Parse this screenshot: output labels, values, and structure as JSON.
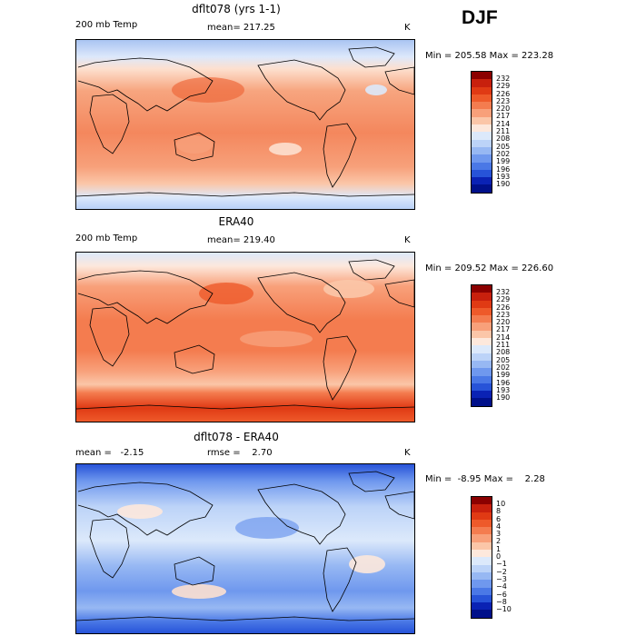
{
  "season": "DJF",
  "panels": [
    {
      "title": "dflt078 (yrs 1-1)",
      "left_label": "200 mb Temp",
      "center_label": "mean= 217.25",
      "units": "K",
      "minmax": "Min = 205.58 Max = 223.28",
      "colorbar": {
        "labels": [
          "232",
          "229",
          "226",
          "223",
          "220",
          "217",
          "214",
          "211",
          "208",
          "205",
          "202",
          "199",
          "196",
          "193",
          "190"
        ],
        "colors": [
          "#8b0000",
          "#c8200d",
          "#e03a14",
          "#ee5a2a",
          "#f47c4f",
          "#f8a07a",
          "#fbc6a8",
          "#fde8dc",
          "#dce9fb",
          "#bcd3f8",
          "#97b8f3",
          "#6f98ee",
          "#4a78e6",
          "#2753d8",
          "#0a22b4",
          "#00108a"
        ]
      }
    },
    {
      "title": "ERA40",
      "left_label": "200 mb Temp",
      "center_label": "mean= 219.40",
      "units": "K",
      "minmax": "Min = 209.52 Max = 226.60",
      "colorbar": {
        "labels": [
          "232",
          "229",
          "226",
          "223",
          "220",
          "217",
          "214",
          "211",
          "208",
          "205",
          "202",
          "199",
          "196",
          "193",
          "190"
        ],
        "colors": [
          "#8b0000",
          "#c8200d",
          "#e03a14",
          "#ee5a2a",
          "#f47c4f",
          "#f8a07a",
          "#fbc6a8",
          "#fde8dc",
          "#dce9fb",
          "#bcd3f8",
          "#97b8f3",
          "#6f98ee",
          "#4a78e6",
          "#2753d8",
          "#0a22b4",
          "#00108a"
        ]
      }
    },
    {
      "title": "dflt078 - ERA40",
      "left_label": "mean =   -2.15",
      "center_label": "rmse =    2.70",
      "units": "K",
      "minmax": "Min =  -8.95 Max =    2.28",
      "colorbar": {
        "labels": [
          "10",
          "8",
          "6",
          "4",
          "3",
          "2",
          "1",
          "0",
          "−1",
          "−2",
          "−3",
          "−4",
          "−6",
          "−8",
          "−10"
        ],
        "colors": [
          "#8b0000",
          "#c8200d",
          "#e03a14",
          "#ee5a2a",
          "#f47c4f",
          "#f8a07a",
          "#fbc6a8",
          "#fde8dc",
          "#dce9fb",
          "#bcd3f8",
          "#97b8f3",
          "#6f98ee",
          "#4a78e6",
          "#2753d8",
          "#0a22b4",
          "#00108a"
        ]
      }
    }
  ]
}
